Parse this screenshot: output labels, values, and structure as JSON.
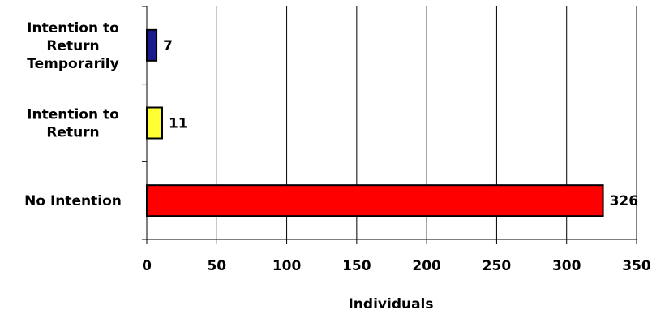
{
  "chart_data": {
    "type": "bar",
    "orientation": "horizontal",
    "categories": [
      "Intention to Return Temporarily",
      "Intention to Return",
      "No Intention"
    ],
    "category_label_lines": [
      [
        "Intention to",
        "Return",
        "Temporarily"
      ],
      [
        "Intention to",
        "Return"
      ],
      [
        "No Intention"
      ]
    ],
    "values": [
      7,
      11,
      326
    ],
    "value_labels": [
      "7",
      "11",
      "326"
    ],
    "bar_colors": [
      "#1a1a8c",
      "#ffff33",
      "#ff0000"
    ],
    "xlabel": "Individuals",
    "ylabel": "",
    "title": "",
    "xlim": [
      0,
      350
    ],
    "xticks": [
      0,
      50,
      100,
      150,
      200,
      250,
      300,
      350
    ],
    "xtick_labels": [
      "0",
      "50",
      "100",
      "150",
      "200",
      "250",
      "300",
      "350"
    ],
    "grid": "vertical",
    "legend": "none"
  }
}
